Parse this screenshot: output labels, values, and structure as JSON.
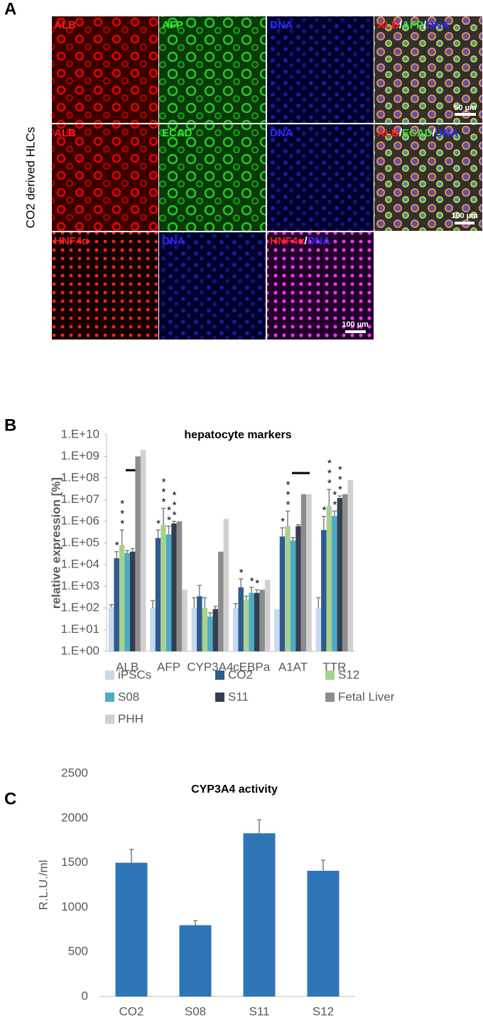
{
  "panel_a": {
    "label": "A",
    "side_label": "CO2 derived HLCs",
    "rows": [
      [
        [
          "ALB"
        ],
        [
          "AFP"
        ],
        [
          "DNA"
        ],
        [
          "ALB",
          "/",
          "AFP",
          "/",
          "DNA"
        ]
      ],
      [
        [
          "ALB"
        ],
        [
          "ECAD"
        ],
        [
          "DNA"
        ],
        [
          "ALB",
          "/",
          "ECAD",
          "/",
          "DNA"
        ]
      ],
      [
        [
          "HNF4α"
        ],
        [
          "DNA"
        ],
        [
          "HNF4α",
          "/",
          "DNA"
        ]
      ]
    ],
    "scale_bars": [
      "50 µm",
      "100 µm",
      "100 µm"
    ]
  },
  "chart_data": [
    {
      "panel": "B",
      "type": "bar",
      "title": "hepatocyte markers",
      "y_label": "relative expression [%]",
      "log_scale": true,
      "categories": [
        "ALB",
        "AFP",
        "CYP3A4",
        "cEBPa",
        "A1AT",
        "TTR"
      ],
      "ylim": [
        1,
        10000000000
      ],
      "yticks": [
        {
          "value": 1,
          "label": "1.E+00"
        },
        {
          "value": 10,
          "label": "1.E+01"
        },
        {
          "value": 100,
          "label": "1.E+02"
        },
        {
          "value": 1000,
          "label": "1.E+03"
        },
        {
          "value": 10000,
          "label": "1.E+04"
        },
        {
          "value": 100000,
          "label": "1.E+05"
        },
        {
          "value": 1000000,
          "label": "1.E+06"
        },
        {
          "value": 10000000,
          "label": "1.E+07"
        },
        {
          "value": 100000000,
          "label": "1.E+08"
        },
        {
          "value": 1000000000,
          "label": "1.E+09"
        },
        {
          "value": 10000000000,
          "label": "1.E+10"
        }
      ],
      "series": [
        {
          "name": "iPSCs",
          "color": "#c6d9f0",
          "values": [
            110,
            100,
            100,
            100,
            90,
            100
          ],
          "errors": [
            30,
            120,
            200,
            60,
            null,
            200
          ],
          "annotations": [
            null,
            null,
            null,
            null,
            null,
            null
          ]
        },
        {
          "name": "CO2",
          "color": "#2e5a8e",
          "values": [
            20000,
            170000,
            350,
            900,
            200000,
            400000
          ],
          "errors": [
            20000,
            230000,
            750,
            1300,
            300000,
            1300000
          ],
          "annotations": [
            "*",
            "*",
            null,
            "*",
            "*",
            "*"
          ]
        },
        {
          "name": "S12",
          "color": "#a9d18e",
          "values": [
            80000,
            700000,
            100,
            250,
            600000,
            5000000
          ],
          "errors": [
            320000,
            3300000,
            200,
            100,
            2400000,
            25000000
          ],
          "annotations": [
            "***",
            "***",
            null,
            null,
            "***",
            "***"
          ]
        },
        {
          "name": "S08",
          "color": "#4bacc6",
          "values": [
            35000,
            250000,
            40,
            500,
            130000,
            1800000
          ],
          "errors": [
            10000,
            350000,
            20,
            400,
            50000,
            1200000
          ],
          "annotations": [
            null,
            "**",
            null,
            "*",
            null,
            "**"
          ]
        },
        {
          "name": "S11",
          "color": "#333f50",
          "values": [
            40000,
            800000,
            90,
            500,
            600000,
            12000000
          ],
          "errors": [
            15000,
            200000,
            30,
            200,
            100000,
            3000000
          ],
          "annotations": [
            null,
            "***",
            null,
            "*",
            null,
            "***"
          ]
        },
        {
          "name": "Fetal Liver",
          "color": "#8c8c8c",
          "values": [
            1000000000,
            1000000,
            40000,
            700,
            18000000,
            18000000
          ]
        },
        {
          "name": "PHH",
          "color": "#d0d0d0",
          "values": [
            2000000000,
            700,
            1300000,
            2000,
            18000000,
            80000000
          ]
        }
      ]
    },
    {
      "panel": "C",
      "type": "bar",
      "title": "CYP3A4 activity",
      "y_label": "R.L.U./ml",
      "categories": [
        "CO2",
        "S08",
        "S11",
        "S12"
      ],
      "values": [
        1500,
        800,
        1830,
        1410
      ],
      "errors": [
        150,
        50,
        150,
        120
      ],
      "color": "#2e75b6",
      "ylim": [
        0,
        2500
      ],
      "yticks": [
        0,
        500,
        1000,
        1500,
        2000,
        2500
      ]
    }
  ]
}
